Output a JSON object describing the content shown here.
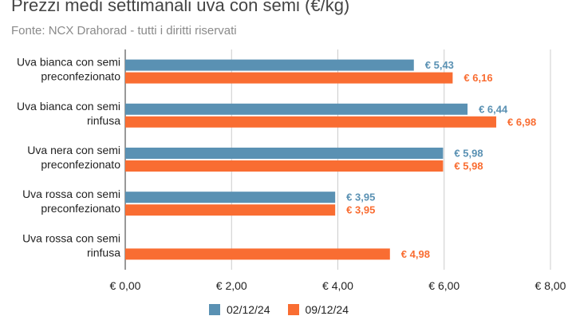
{
  "chart_data": {
    "type": "bar",
    "orientation": "horizontal",
    "title": "Prezzi medi settimanali uva con semi (€/kg)",
    "subtitle": "Fonte: NCX Drahorad - tutti i diritti riservati",
    "categories": [
      [
        "Uva bianca con semi",
        "preconfezionato"
      ],
      [
        "Uva bianca con semi",
        "rinfusa"
      ],
      [
        "Uva nera con semi",
        "preconfezionato"
      ],
      [
        "Uva rossa con semi",
        "preconfezionato"
      ],
      [
        "Uva rossa con semi",
        "rinfusa"
      ]
    ],
    "series": [
      {
        "name": "02/12/24",
        "color": "#5a91b3",
        "values": [
          5.43,
          6.44,
          5.98,
          3.95,
          null
        ],
        "labels": [
          "€ 5,43",
          "€ 6,44",
          "€ 5,98",
          "€ 3,95",
          ""
        ]
      },
      {
        "name": "09/12/24",
        "color": "#f96d32",
        "values": [
          6.16,
          6.98,
          5.98,
          3.95,
          4.98
        ],
        "labels": [
          "€ 6,16",
          "€ 6,98",
          "€ 5,98",
          "€ 3,95",
          "€ 4,98"
        ]
      }
    ],
    "xlim": [
      0,
      8
    ],
    "x_ticks": [
      0,
      2,
      4,
      6,
      8
    ],
    "x_tick_labels": [
      "€ 0,00",
      "€ 2,00",
      "€ 4,00",
      "€ 6,00",
      "€ 8,00"
    ],
    "grid": "vertical",
    "legend_position": "bottom"
  }
}
